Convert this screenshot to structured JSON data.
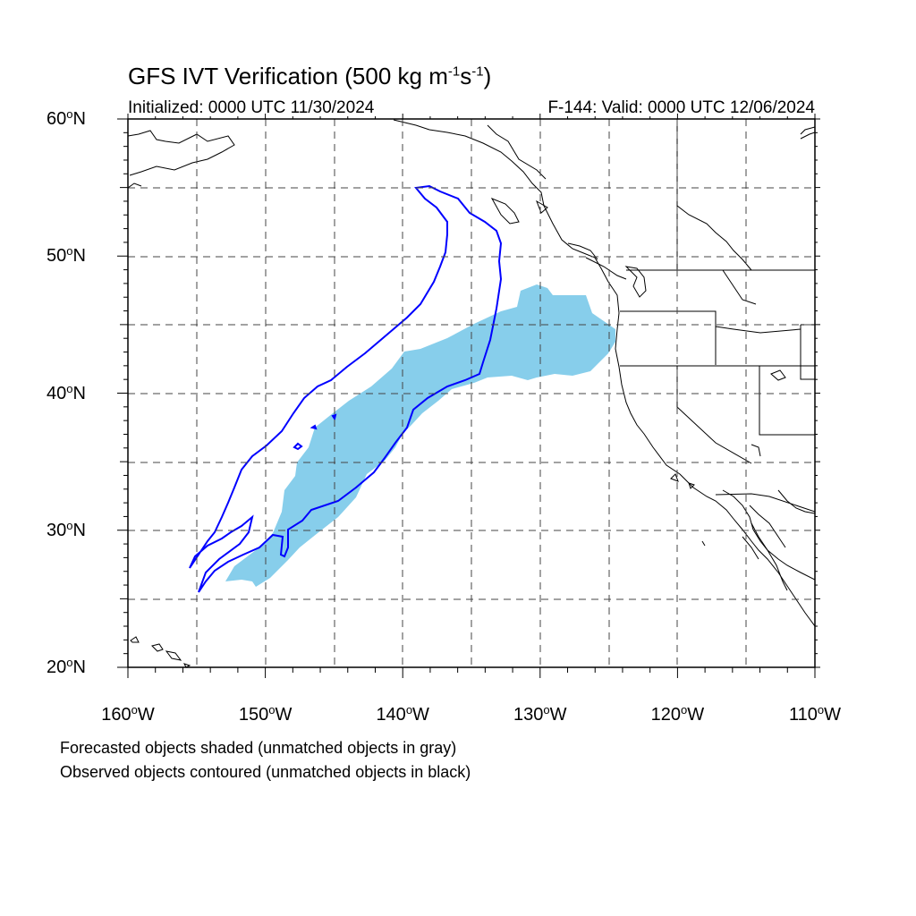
{
  "title": {
    "text": "GFS IVT Verification (500 kg m",
    "sup1": "-1",
    "mid": "s",
    "sup2": "-1",
    "end": ")"
  },
  "subtitle_left": "Initialized: 0000 UTC 11/30/2024",
  "subtitle_right": "F-144: Valid: 0000 UTC 12/06/2024",
  "map": {
    "projection": "cylindrical equidistant",
    "lon_range": [
      -160,
      -110
    ],
    "lat_range": [
      20,
      60
    ],
    "grid": "dashed every 5 degrees",
    "forecast_fill_color": "#87ceeb",
    "observed_contour_color": "#0000ff",
    "coastline_color": "#000000",
    "lat_labels": [
      {
        "value": 60,
        "num": "60",
        "hemi": "N"
      },
      {
        "value": 50,
        "num": "50",
        "hemi": "N"
      },
      {
        "value": 40,
        "num": "40",
        "hemi": "N"
      },
      {
        "value": 30,
        "num": "30",
        "hemi": "N"
      },
      {
        "value": 20,
        "num": "20",
        "hemi": "N"
      }
    ],
    "lon_labels": [
      {
        "value": -160,
        "num": "160",
        "hemi": "W"
      },
      {
        "value": -150,
        "num": "150",
        "hemi": "W"
      },
      {
        "value": -140,
        "num": "140",
        "hemi": "W"
      },
      {
        "value": -130,
        "num": "130",
        "hemi": "W"
      },
      {
        "value": -120,
        "num": "120",
        "hemi": "W"
      },
      {
        "value": -110,
        "num": "110",
        "hemi": "W"
      }
    ],
    "deg_symbol": "o"
  },
  "footnote_1": "Forecasted objects shaded (unmatched objects in gray)",
  "footnote_2": "Observed objects contoured (unmatched objects in black)"
}
